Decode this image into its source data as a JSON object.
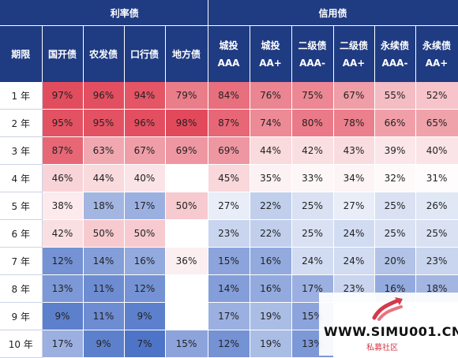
{
  "header": {
    "term_label": "期限",
    "groups": [
      "利率债",
      "信用债"
    ],
    "rate_columns": [
      "国开债",
      "农发债",
      "口行债",
      "地方债"
    ],
    "credit_columns": [
      [
        "城投",
        "AAA"
      ],
      [
        "城投",
        "AA+"
      ],
      [
        "二级债",
        "AAA-"
      ],
      [
        "二级债",
        "AA+"
      ],
      [
        "永续债",
        "AAA-"
      ],
      [
        "永续债",
        "AA+"
      ]
    ]
  },
  "rows": [
    {
      "term": "1 年",
      "values": [
        "97%",
        "96%",
        "94%",
        "79%",
        "84%",
        "76%",
        "75%",
        "67%",
        "55%",
        "52%"
      ]
    },
    {
      "term": "2 年",
      "values": [
        "95%",
        "95%",
        "96%",
        "98%",
        "87%",
        "74%",
        "80%",
        "78%",
        "66%",
        "65%"
      ]
    },
    {
      "term": "3 年",
      "values": [
        "87%",
        "63%",
        "67%",
        "69%",
        "69%",
        "44%",
        "42%",
        "43%",
        "39%",
        "40%"
      ]
    },
    {
      "term": "4 年",
      "values": [
        "46%",
        "44%",
        "40%",
        "",
        "45%",
        "35%",
        "33%",
        "34%",
        "32%",
        "31%"
      ]
    },
    {
      "term": "5 年",
      "values": [
        "38%",
        "18%",
        "17%",
        "50%",
        "27%",
        "22%",
        "25%",
        "27%",
        "25%",
        "26%"
      ]
    },
    {
      "term": "6 年",
      "values": [
        "42%",
        "50%",
        "50%",
        "",
        "23%",
        "22%",
        "25%",
        "24%",
        "25%",
        "25%"
      ]
    },
    {
      "term": "7 年",
      "values": [
        "12%",
        "14%",
        "16%",
        "36%",
        "15%",
        "16%",
        "24%",
        "24%",
        "20%",
        "23%"
      ]
    },
    {
      "term": "8 年",
      "values": [
        "13%",
        "11%",
        "12%",
        "",
        "14%",
        "16%",
        "17%",
        "23%",
        "16%",
        "18%"
      ]
    },
    {
      "term": "9 年",
      "values": [
        "9%",
        "11%",
        "9%",
        "",
        "17%",
        "19%",
        "15%",
        "",
        "",
        ""
      ]
    },
    {
      "term": "10 年",
      "values": [
        "17%",
        "9%",
        "7%",
        "15%",
        "12%",
        "19%",
        "13%",
        "",
        "",
        ""
      ]
    }
  ],
  "watermark": {
    "text": "WWW.SIMU001.CN",
    "sub": "私募社区"
  },
  "colors": {
    "header_bg": "#1f3b82",
    "high": "#e24a5c",
    "mid": "#ffffff",
    "low": "#4e74c8"
  }
}
